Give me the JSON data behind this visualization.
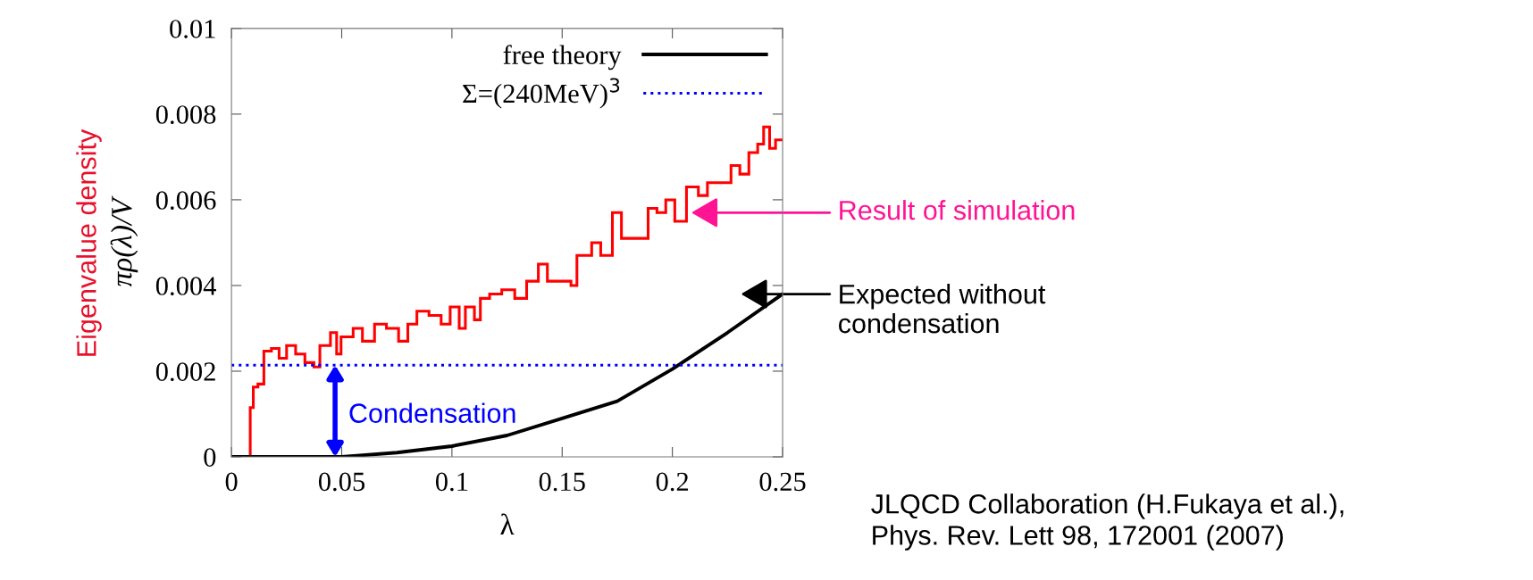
{
  "chart_data": {
    "type": "histogram",
    "xlabel": "λ",
    "ylabel": "πρ(λ)/V",
    "bins": [
      0,
      0.0085,
      0.0099,
      0.012,
      0.0147,
      0.0181,
      0.0216,
      0.025,
      0.0291,
      0.0333,
      0.0374,
      0.0401,
      0.0449,
      0.0477,
      0.0497,
      0.0552,
      0.0594,
      0.0649,
      0.0703,
      0.0758,
      0.08,
      0.0841,
      0.0896,
      0.0951,
      0.0992,
      0.1033,
      0.1061,
      0.1102,
      0.1129,
      0.1171,
      0.1226,
      0.1285,
      0.1339,
      0.1392,
      0.1433,
      0.15,
      0.154,
      0.1567,
      0.1634,
      0.1675,
      0.1728,
      0.1769,
      0.1836,
      0.189,
      0.193,
      0.197,
      0.2011,
      0.2064,
      0.2118,
      0.2159,
      0.2212,
      0.2266,
      0.2306,
      0.2347,
      0.2387,
      0.2414,
      0.2441,
      0.2468,
      0.25
    ],
    "values": [
      0,
      0.00115,
      0.00163,
      0.0017,
      0.00247,
      0.00253,
      0.0023,
      0.0026,
      0.0024,
      0.0022,
      0.0021,
      0.0026,
      0.0029,
      0.0024,
      0.0028,
      0.003,
      0.0027,
      0.0031,
      0.003,
      0.0027,
      0.0031,
      0.0034,
      0.0033,
      0.0031,
      0.0035,
      0.003,
      0.0035,
      0.0032,
      0.0037,
      0.0038,
      0.0039,
      0.0037,
      0.0041,
      0.0045,
      0.0041,
      0.0041,
      0.004,
      0.0047,
      0.005,
      0.0047,
      0.0057,
      0.0051,
      0.0051,
      0.0058,
      0.0057,
      0.006,
      0.0055,
      0.0063,
      0.0061,
      0.0064,
      0.0064,
      0.0068,
      0.0066,
      0.0071,
      0.0073,
      0.0077,
      0.0072,
      0.0074
    ],
    "color": "#ff0000",
    "series": [
      {
        "type": "line",
        "name": "free theory",
        "color": "#000000",
        "line_style": "solid",
        "x": [
          0,
          0.025,
          0.05,
          0.075,
          0.1,
          0.125,
          0.15,
          0.175,
          0.2,
          0.225,
          0.25
        ],
        "values": [
          0,
          0,
          0,
          0.0001,
          0.00025,
          0.0005,
          0.0009,
          0.0013,
          0.00205,
          0.0029,
          0.0038
        ]
      },
      {
        "type": "line",
        "name": "Σ=(240MeV)$^{3}$",
        "color": "#0000ff",
        "line_style": "dotted",
        "x": [
          0,
          0.25
        ],
        "values": [
          0.00214,
          0.00214
        ]
      }
    ],
    "xlim": [
      0,
      0.25
    ],
    "ylim": [
      0,
      0.01
    ],
    "xticks": [
      0,
      0.05,
      0.1,
      0.15,
      0.2,
      0.25
    ],
    "yticks": [
      0,
      0.002,
      0.004,
      0.006,
      0.008,
      0.01
    ],
    "legend": "top right",
    "grid": false,
    "annotations": [
      "Eigenvalue density",
      "Result of simulation",
      "Expected without\ncondensation",
      {
        "text": "Condensation",
        "x": 0.047,
        "y": 0.00214
      },
      "JLQCD Collaboration (H.Fukaya et al.),\nPhys. Rev. Lett 98, 172001 (2007)"
    ]
  }
}
